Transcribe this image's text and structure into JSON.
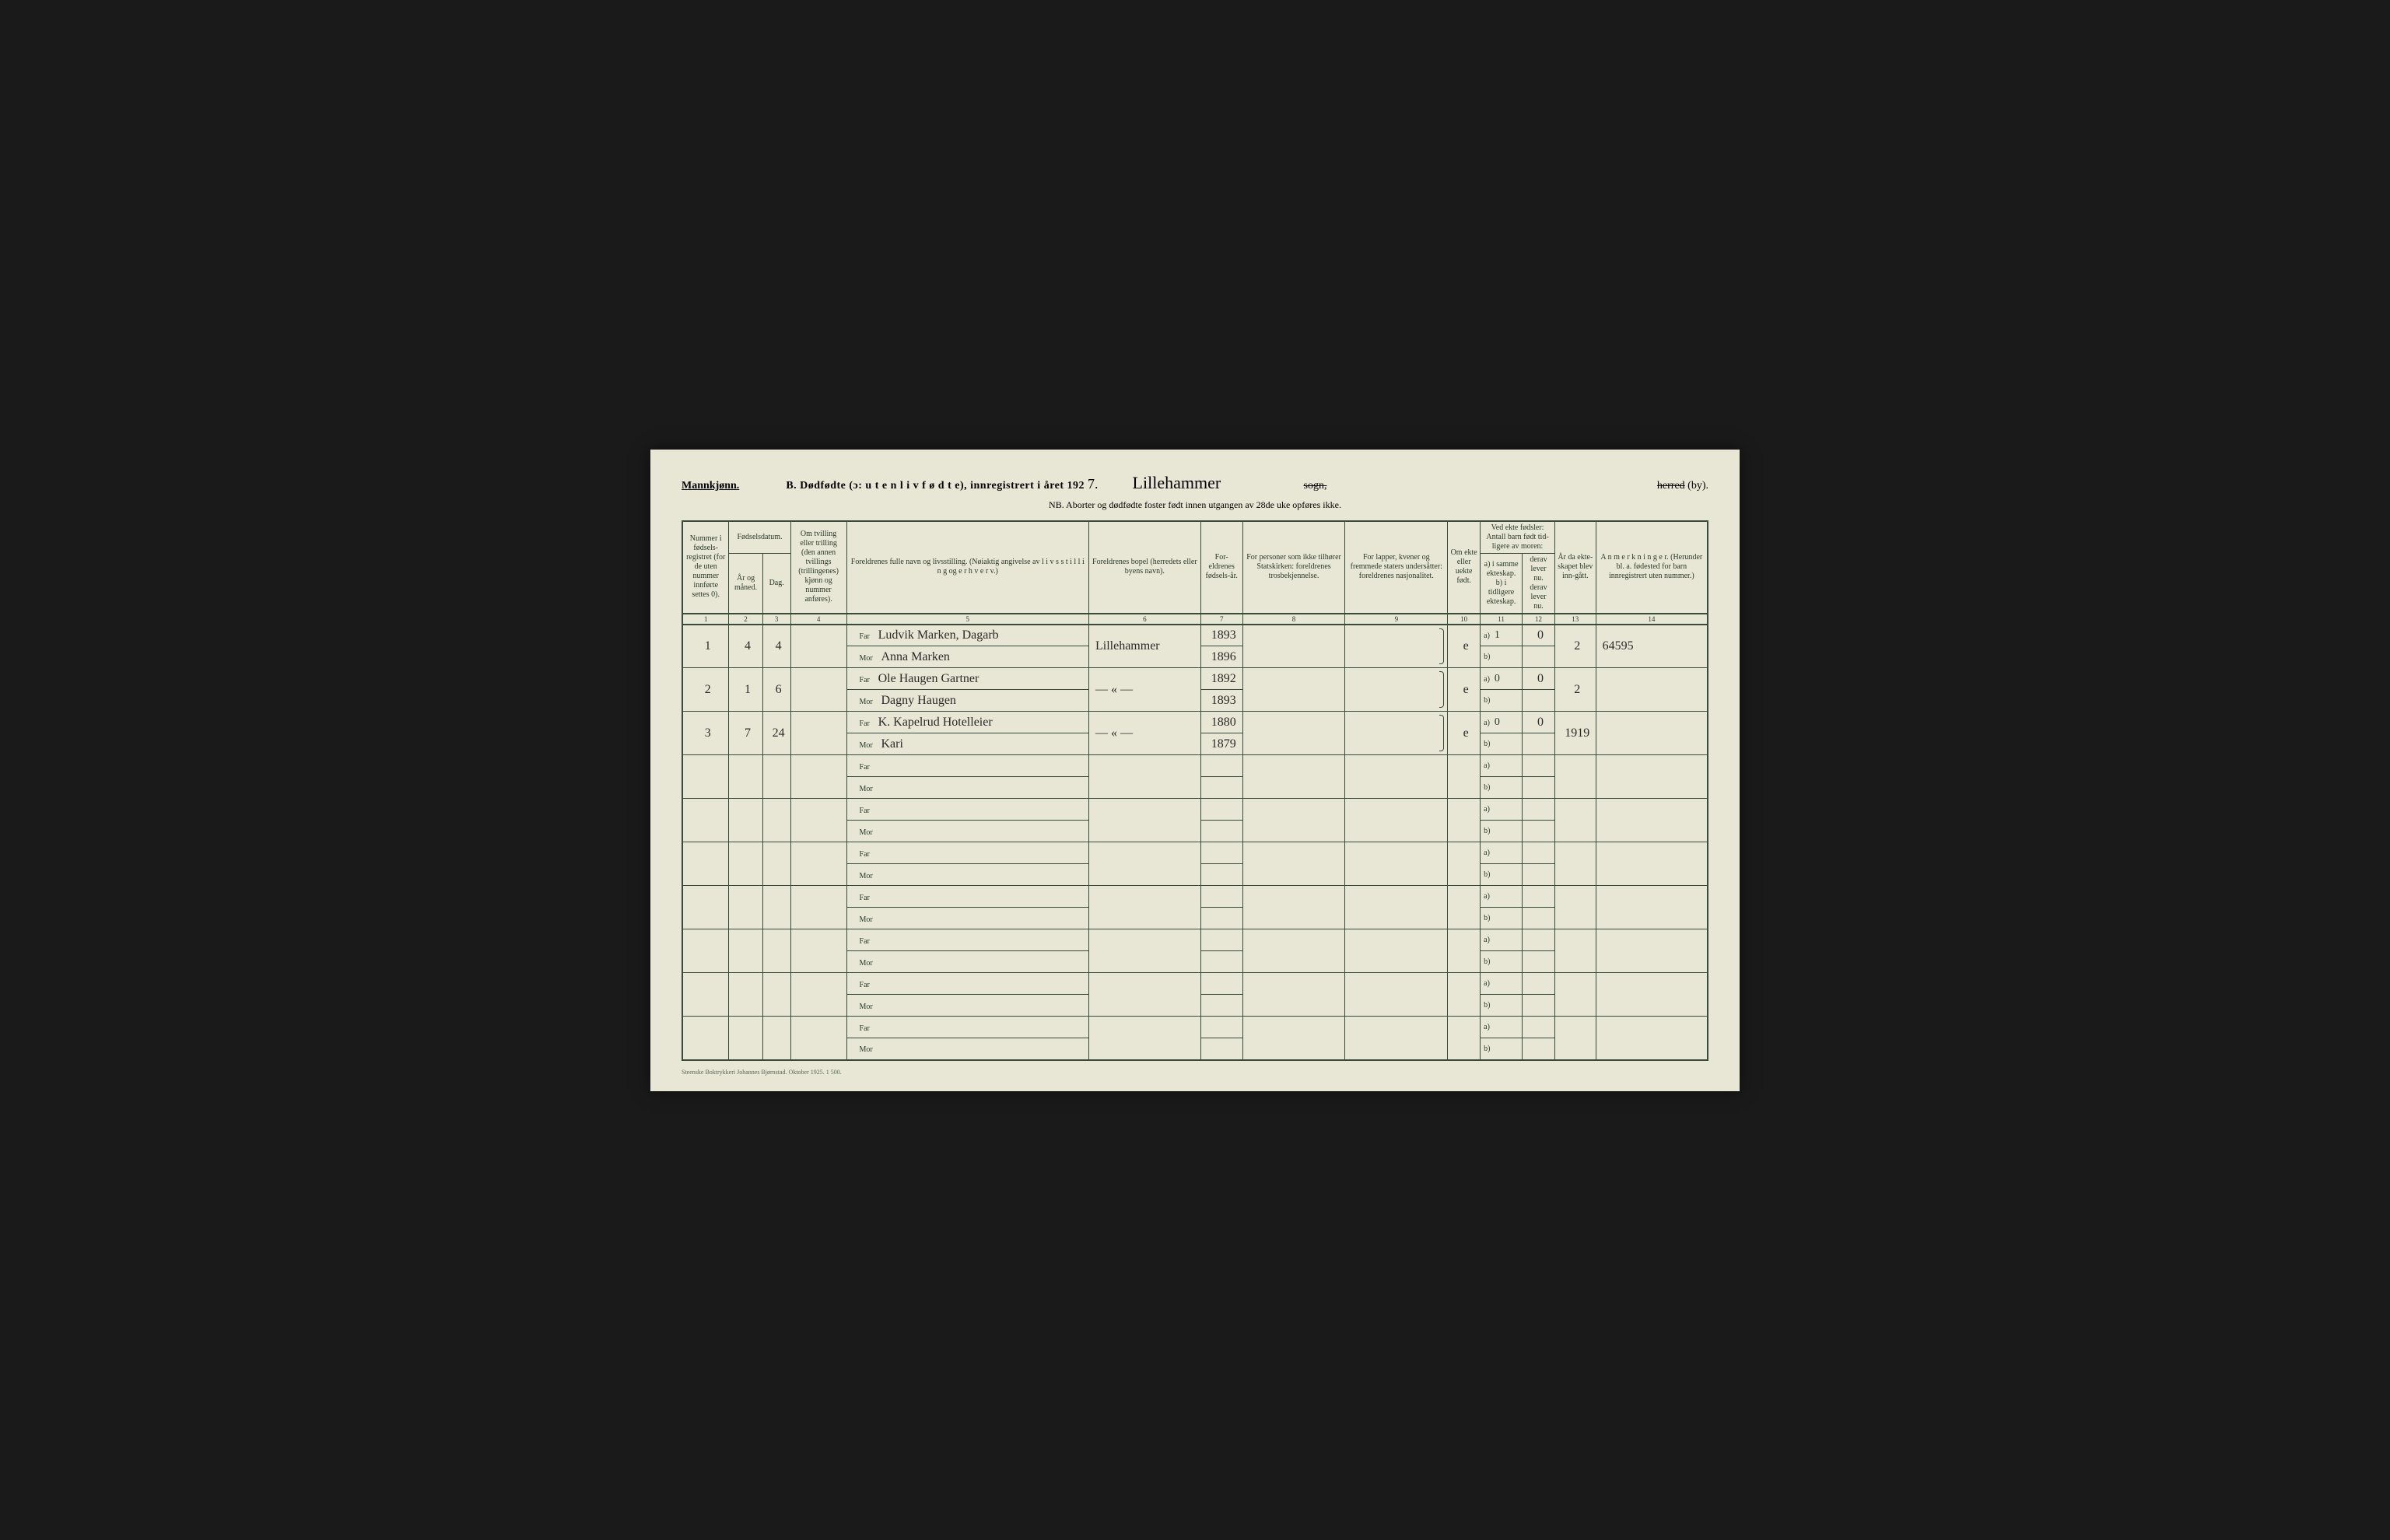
{
  "header": {
    "gender": "Mannkjønn.",
    "title_prefix": "B.  Dødfødte (ɔ:  u t e n  l i v  f ø d t e),  innregistrert i året 192",
    "year_suffix": "7.",
    "parish": "Lillehammer",
    "sogn_label": "sogn,",
    "herred_label": "herred",
    "by_label": "(by).",
    "note": "NB.  Aborter og dødfødte foster født innen utgangen av 28de uke opføres ikke."
  },
  "columns": {
    "c1": "Nummer i fødsels-registret (for de uten nummer innførte settes 0).",
    "c2_group": "Fødselsdatum.",
    "c2": "År og måned.",
    "c3": "Dag.",
    "c4": "Om tvilling eller trilling (den annen tvillings (trillingenes) kjønn og nummer anføres).",
    "c5": "Foreldrenes fulle navn og livsstilling. (Nøiaktig angivelse av l i v s s t i l l i n g  og  e r h v e r v.)",
    "c6": "Foreldrenes bopel (herredets eller byens navn).",
    "c7": "For-eldrenes fødsels-år.",
    "c8": "For personer som ikke tilhører Statskirken: foreldrenes trosbekjennelse.",
    "c9": "For lapper, kvener og fremmede staters undersåtter: foreldrenes nasjonalitet.",
    "c10": "Om ekte eller uekte født.",
    "c11_group": "Ved ekte fødsler: Antall barn født tid-ligere av moren:",
    "c11a": "a) i samme ekteskap.",
    "c11b": "b) i tidligere ekteskap.",
    "c12a": "derav lever nu.",
    "c12b": "derav lever nu.",
    "c13": "År da ekte-skapet blev inn-gått.",
    "c14": "A n m e r k n i n g e r. (Herunder bl. a. fødested for barn innregistrert uten nummer.)"
  },
  "col_nums": [
    "1",
    "2",
    "3",
    "4",
    "5",
    "6",
    "7",
    "8",
    "9",
    "10",
    "11",
    "12",
    "13",
    "14"
  ],
  "labels": {
    "far": "Far",
    "mor": "Mor",
    "a": "a)",
    "b": "b)"
  },
  "rows": [
    {
      "n": "1",
      "mon": "4",
      "day": "4",
      "far": "Ludvik Marken, Dagarb",
      "mor": "Anna Marken",
      "bopel": "Lillehammer",
      "far_yr": "1893",
      "mor_yr": "1896",
      "ekte": "e",
      "a": "1",
      "a12": "0",
      "yr13": "2",
      "note": "64595"
    },
    {
      "n": "2",
      "mon": "1",
      "day": "6",
      "far": "Ole Haugen Gartner",
      "mor": "Dagny Haugen",
      "bopel": "— « —",
      "far_yr": "1892",
      "mor_yr": "1893",
      "ekte": "e",
      "a": "0",
      "a12": "0",
      "yr13": "2",
      "note": ""
    },
    {
      "n": "3",
      "mon": "7",
      "day": "24",
      "far": "K. Kapelrud Hotelleier",
      "mor": "Kari",
      "bopel": "— « —",
      "far_yr": "1880",
      "mor_yr": "1879",
      "ekte": "e",
      "a": "0",
      "a12": "0",
      "yr13": "1919",
      "note": ""
    }
  ],
  "empty_rows": 7,
  "footer": "Steenske Boktrykkeri Johannes Bjørnstad.  Oktober 1925.  1 500."
}
